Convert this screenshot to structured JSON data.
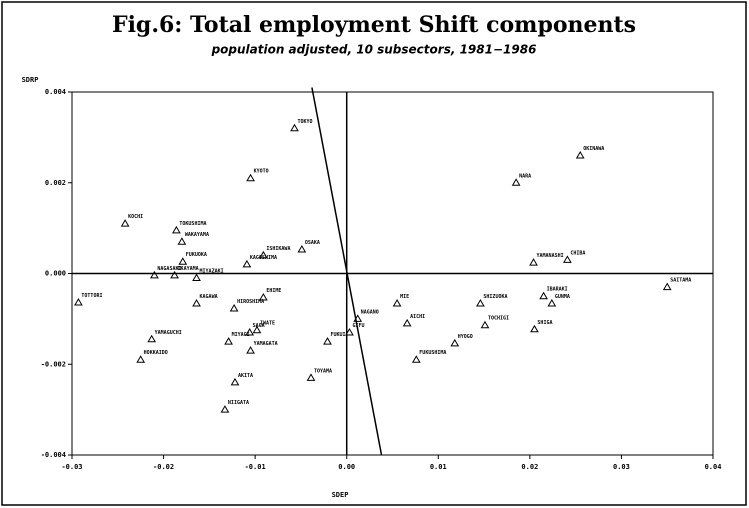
{
  "chart_data": {
    "type": "scatter",
    "title": "Fig.6: Total employment Shift components",
    "subtitle": "population adjusted, 10 subsectors, 1981−1986",
    "x_label": "SDEP",
    "y_label": "SDRP",
    "color": "#000000",
    "xlim": [
      -0.03,
      0.04
    ],
    "xticks": [
      -0.03,
      -0.02,
      -0.01,
      {
        "value": 0,
        "label": "0.00"
      },
      0.01,
      0.02,
      0.03,
      0.04
    ],
    "ylim": [
      -0.004,
      0.004
    ],
    "yticks": [
      -0.004,
      -0.002,
      {
        "value": 0,
        "label": "0.000"
      },
      0.002,
      0.004
    ],
    "labels": [
      "TOKYO",
      "OKINAWA",
      "NARA",
      "KYOTO",
      "KOCHI",
      "TOKUSHIMA",
      "WAKAYAMA",
      "OSAKA",
      "ISHIKAWA",
      "KAGOSHIMA",
      "FUKUOKA",
      "CHIBA",
      "YAMANASHI",
      "SAITAMA",
      "TOTTORI",
      "NAGASAKI",
      "OKAYAMA",
      "MIYAZAKI",
      "KAGAWA",
      "HIROSHIMA",
      "EHIME",
      "IBARAKI",
      "GUNMA",
      "SHIZUOKA",
      "MIE",
      "AICHI",
      "NAGANO",
      "TOCHIGI",
      "GIFU",
      "SHIGA",
      "HYOGO",
      "FUKUSHIMA",
      "NIIGATA",
      "AKITA",
      "TOYAMA",
      "HOKKAIDO",
      "YAMAGUCHI",
      "SAGA",
      "IWATE",
      "MIYAGI",
      "YAMAGATA",
      "FUKUI"
    ],
    "x": [
      -0.0057,
      0.0255,
      0.0185,
      -0.0105,
      -0.0242,
      -0.0186,
      -0.018,
      -0.0049,
      -0.0091,
      -0.0109,
      -0.0179,
      0.0241,
      0.0204,
      0.035,
      -0.0293,
      -0.021,
      -0.0188,
      -0.0164,
      -0.0164,
      -0.0123,
      -0.0091,
      0.0215,
      0.0224,
      0.0146,
      0.0055,
      0.0066,
      0.0012,
      0.0151,
      0.0003,
      0.0205,
      0.0118,
      0.0076,
      -0.0133,
      -0.0122,
      -0.0039,
      -0.0225,
      -0.0213,
      -0.0106,
      -0.0098,
      -0.0129,
      -0.0105,
      -0.0021
    ],
    "y": [
      0.0032,
      0.0026,
      0.002,
      0.0021,
      0.0011,
      0.00095,
      0.0007,
      0.00053,
      0.0004,
      0.0002,
      0.00026,
      0.0003,
      0.00024,
      -0.0003,
      -0.00064,
      -4e-05,
      -4e-05,
      -0.0001,
      -0.00066,
      -0.00077,
      -0.00053,
      -0.0005,
      -0.00066,
      -0.00066,
      -0.00066,
      -0.0011,
      -0.001,
      -0.00114,
      -0.0013,
      -0.00123,
      -0.00154,
      -0.0019,
      -0.003,
      -0.0024,
      -0.0023,
      -0.0019,
      -0.00145,
      -0.0013,
      -0.00125,
      -0.0015,
      -0.0017,
      -0.0015
    ],
    "line": {
      "x": [
        -0.0038,
        0.0038
      ],
      "y": [
        0.0041,
        -0.004
      ]
    }
  }
}
